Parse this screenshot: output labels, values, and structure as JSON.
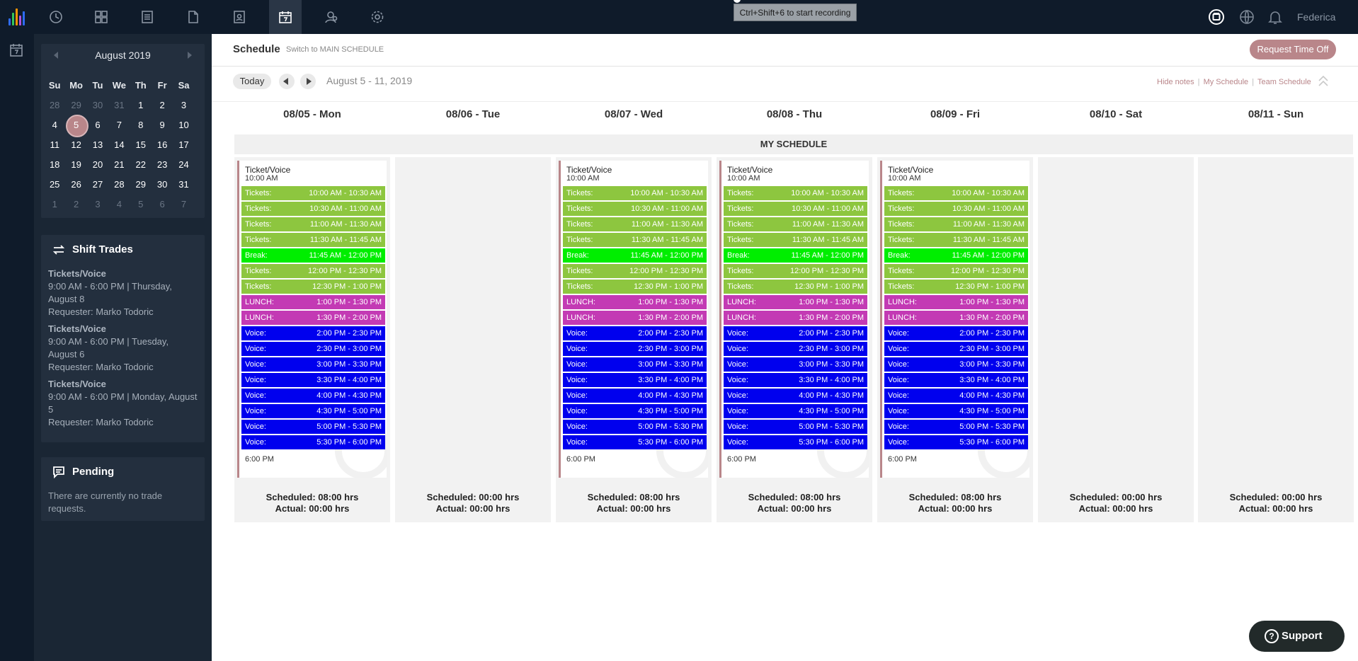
{
  "topbar": {
    "recording_tip": "Ctrl+Shift+6 to start recording",
    "user_name": "Federica",
    "nav_icons": [
      "clock-icon",
      "dashboard-icon",
      "list-icon",
      "folder-icon",
      "contacts-icon",
      "calendar-icon",
      "team-icon",
      "settings-icon"
    ],
    "active_nav": "calendar-icon",
    "logo_colors": [
      "#2f6cf6",
      "#34c759",
      "#ff9500",
      "#af52de"
    ]
  },
  "calendar": {
    "month_label": "August 2019",
    "dow": [
      "Su",
      "Mo",
      "Tu",
      "We",
      "Th",
      "Fr",
      "Sa"
    ],
    "weeks": [
      [
        "28",
        "29",
        "30",
        "31",
        "1",
        "2",
        "3"
      ],
      [
        "4",
        "5",
        "6",
        "7",
        "8",
        "9",
        "10"
      ],
      [
        "11",
        "12",
        "13",
        "14",
        "15",
        "16",
        "17"
      ],
      [
        "18",
        "19",
        "20",
        "21",
        "22",
        "23",
        "24"
      ],
      [
        "25",
        "26",
        "27",
        "28",
        "29",
        "30",
        "31"
      ],
      [
        "1",
        "2",
        "3",
        "4",
        "5",
        "6",
        "7"
      ]
    ],
    "selected_day": "5"
  },
  "shift_trades": {
    "title": "Shift Trades",
    "items": [
      {
        "type": "Tickets/Voice",
        "detail": "9:00 AM - 6:00 PM | Thursday, August 8",
        "requester": "Requester: Marko Todoric"
      },
      {
        "type": "Tickets/Voice",
        "detail": "9:00 AM - 6:00 PM | Tuesday, August 6",
        "requester": "Requester: Marko Todoric"
      },
      {
        "type": "Tickets/Voice",
        "detail": "9:00 AM - 6:00 PM | Monday, August 5",
        "requester": "Requester: Marko Todoric"
      }
    ]
  },
  "pending": {
    "title": "Pending",
    "text": "There are currently no trade requests."
  },
  "header": {
    "title": "Schedule",
    "switch_link": "Switch to MAIN SCHEDULE",
    "request_button": "Request Time Off"
  },
  "toolbar": {
    "today": "Today",
    "date_range": "August 5 - 11, 2019",
    "hide_notes": "Hide notes",
    "my_schedule": "My Schedule",
    "team_schedule": "Team Schedule",
    "separator": "|"
  },
  "section_label": "MY SCHEDULE",
  "colors": {
    "tickets": "#8dc63f",
    "break": "#00ee00",
    "lunch": "#c33ab4",
    "voice": "#0000ee",
    "accent": "#b9868a"
  },
  "days": [
    {
      "label": "08/05 - Mon",
      "has_shift": true,
      "scheduled": "Scheduled: 08:00 hrs",
      "actual": "Actual: 00:00 hrs"
    },
    {
      "label": "08/06 - Tue",
      "has_shift": false,
      "scheduled": "Scheduled: 00:00 hrs",
      "actual": "Actual: 00:00 hrs"
    },
    {
      "label": "08/07 - Wed",
      "has_shift": true,
      "scheduled": "Scheduled: 08:00 hrs",
      "actual": "Actual: 00:00 hrs"
    },
    {
      "label": "08/08 - Thu",
      "has_shift": true,
      "scheduled": "Scheduled: 08:00 hrs",
      "actual": "Actual: 00:00 hrs"
    },
    {
      "label": "08/09 - Fri",
      "has_shift": true,
      "scheduled": "Scheduled: 08:00 hrs",
      "actual": "Actual: 00:00 hrs"
    },
    {
      "label": "08/10 - Sat",
      "has_shift": false,
      "scheduled": "Scheduled: 00:00 hrs",
      "actual": "Actual: 00:00 hrs"
    },
    {
      "label": "08/11 - Sun",
      "has_shift": false,
      "scheduled": "Scheduled: 00:00 hrs",
      "actual": "Actual: 00:00 hrs"
    }
  ],
  "shift": {
    "title": "Ticket/Voice",
    "start": "10:00 AM",
    "end": "6:00 PM",
    "slots": [
      {
        "kind": "tickets",
        "label": "Tickets:",
        "time": "10:00 AM - 10:30 AM"
      },
      {
        "kind": "tickets",
        "label": "Tickets:",
        "time": "10:30 AM - 11:00 AM"
      },
      {
        "kind": "tickets",
        "label": "Tickets:",
        "time": "11:00 AM - 11:30 AM"
      },
      {
        "kind": "tickets",
        "label": "Tickets:",
        "time": "11:30 AM - 11:45 AM"
      },
      {
        "kind": "break",
        "label": "Break:",
        "time": "11:45 AM - 12:00 PM"
      },
      {
        "kind": "tickets",
        "label": "Tickets:",
        "time": "12:00 PM - 12:30 PM"
      },
      {
        "kind": "tickets",
        "label": "Tickets:",
        "time": "12:30 PM - 1:00 PM"
      },
      {
        "kind": "lunch",
        "label": "LUNCH:",
        "time": "1:00 PM - 1:30 PM"
      },
      {
        "kind": "lunch",
        "label": "LUNCH:",
        "time": "1:30 PM - 2:00 PM"
      },
      {
        "kind": "voice",
        "label": "Voice:",
        "time": "2:00 PM - 2:30 PM"
      },
      {
        "kind": "voice",
        "label": "Voice:",
        "time": "2:30 PM - 3:00 PM"
      },
      {
        "kind": "voice",
        "label": "Voice:",
        "time": "3:00 PM - 3:30 PM"
      },
      {
        "kind": "voice",
        "label": "Voice:",
        "time": "3:30 PM - 4:00 PM"
      },
      {
        "kind": "voice",
        "label": "Voice:",
        "time": "4:00 PM - 4:30 PM"
      },
      {
        "kind": "voice",
        "label": "Voice:",
        "time": "4:30 PM - 5:00 PM"
      },
      {
        "kind": "voice",
        "label": "Voice:",
        "time": "5:00 PM - 5:30 PM"
      },
      {
        "kind": "voice",
        "label": "Voice:",
        "time": "5:30 PM - 6:00 PM"
      }
    ]
  },
  "support": {
    "label": "Support"
  }
}
